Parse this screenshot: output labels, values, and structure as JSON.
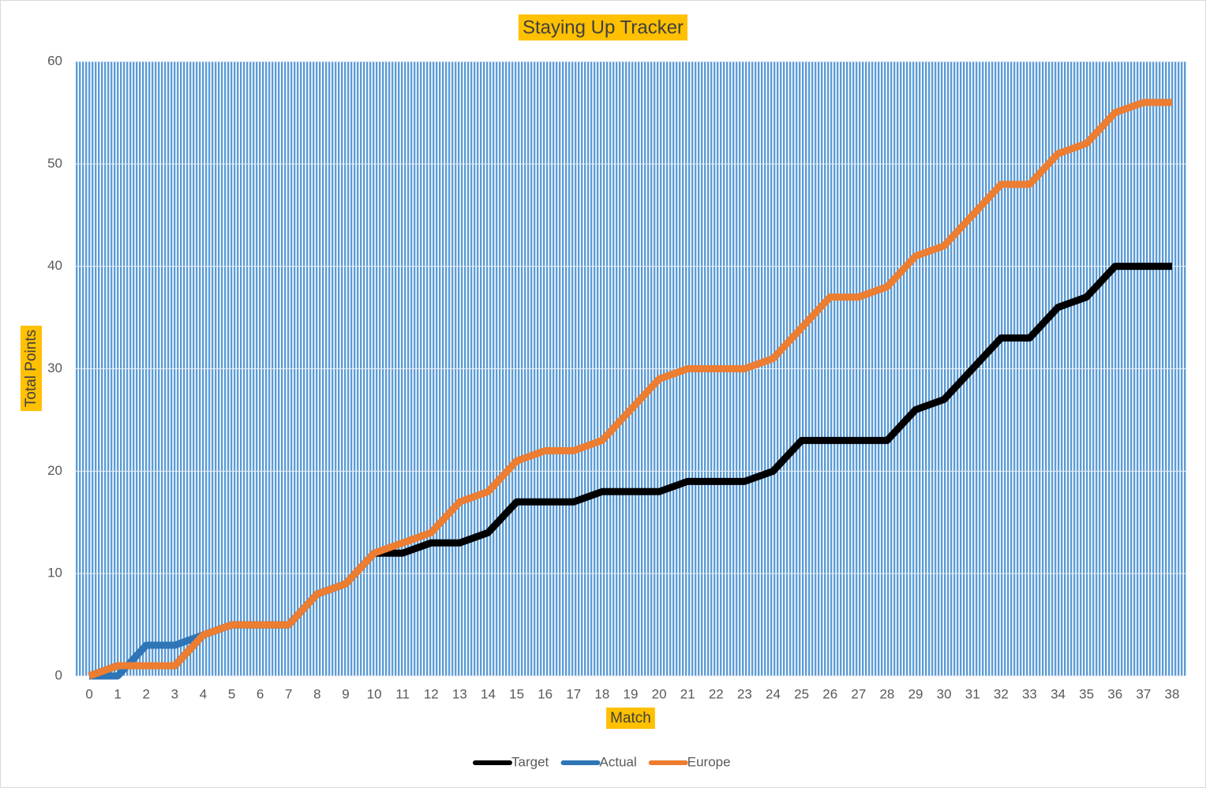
{
  "chart_data": {
    "type": "line",
    "title": "Staying Up Tracker",
    "x_label": "Match",
    "y_label": "Total Points",
    "categories": [
      0,
      1,
      2,
      3,
      4,
      5,
      6,
      7,
      8,
      9,
      10,
      11,
      12,
      13,
      14,
      15,
      16,
      17,
      18,
      19,
      20,
      21,
      22,
      23,
      24,
      25,
      26,
      27,
      28,
      29,
      30,
      31,
      32,
      33,
      34,
      35,
      36,
      37,
      38
    ],
    "series": [
      {
        "name": "Target",
        "color": "#000000",
        "values": [
          0,
          1,
          1,
          1,
          4,
          5,
          5,
          5,
          8,
          9,
          12,
          12,
          13,
          13,
          14,
          17,
          17,
          17,
          18,
          18,
          18,
          19,
          19,
          19,
          20,
          23,
          23,
          23,
          23,
          26,
          27,
          30,
          33,
          33,
          36,
          37,
          40,
          40,
          40
        ]
      },
      {
        "name": "Actual",
        "color": "#2e75b6",
        "values": [
          0,
          0,
          3,
          3,
          4,
          5,
          5,
          5,
          8,
          9,
          12,
          null,
          null,
          null,
          null,
          null,
          null,
          null,
          null,
          null,
          null,
          null,
          null,
          null,
          null,
          null,
          null,
          null,
          null,
          null,
          null,
          null,
          null,
          null,
          null,
          null,
          null,
          null,
          null
        ]
      },
      {
        "name": "Europe",
        "color": "#ed7d31",
        "values": [
          0,
          1,
          1,
          1,
          4,
          5,
          5,
          5,
          8,
          9,
          12,
          13,
          14,
          17,
          18,
          21,
          22,
          22,
          23,
          26,
          29,
          30,
          30,
          30,
          31,
          34,
          37,
          37,
          38,
          41,
          42,
          45,
          48,
          48,
          51,
          52,
          55,
          56,
          56
        ]
      }
    ],
    "ylim": [
      0,
      60
    ],
    "yticks": [
      0,
      10,
      20,
      30,
      40,
      50,
      60
    ],
    "grid": true,
    "legend": "bottom",
    "plot_background": "#5b9bd5"
  }
}
